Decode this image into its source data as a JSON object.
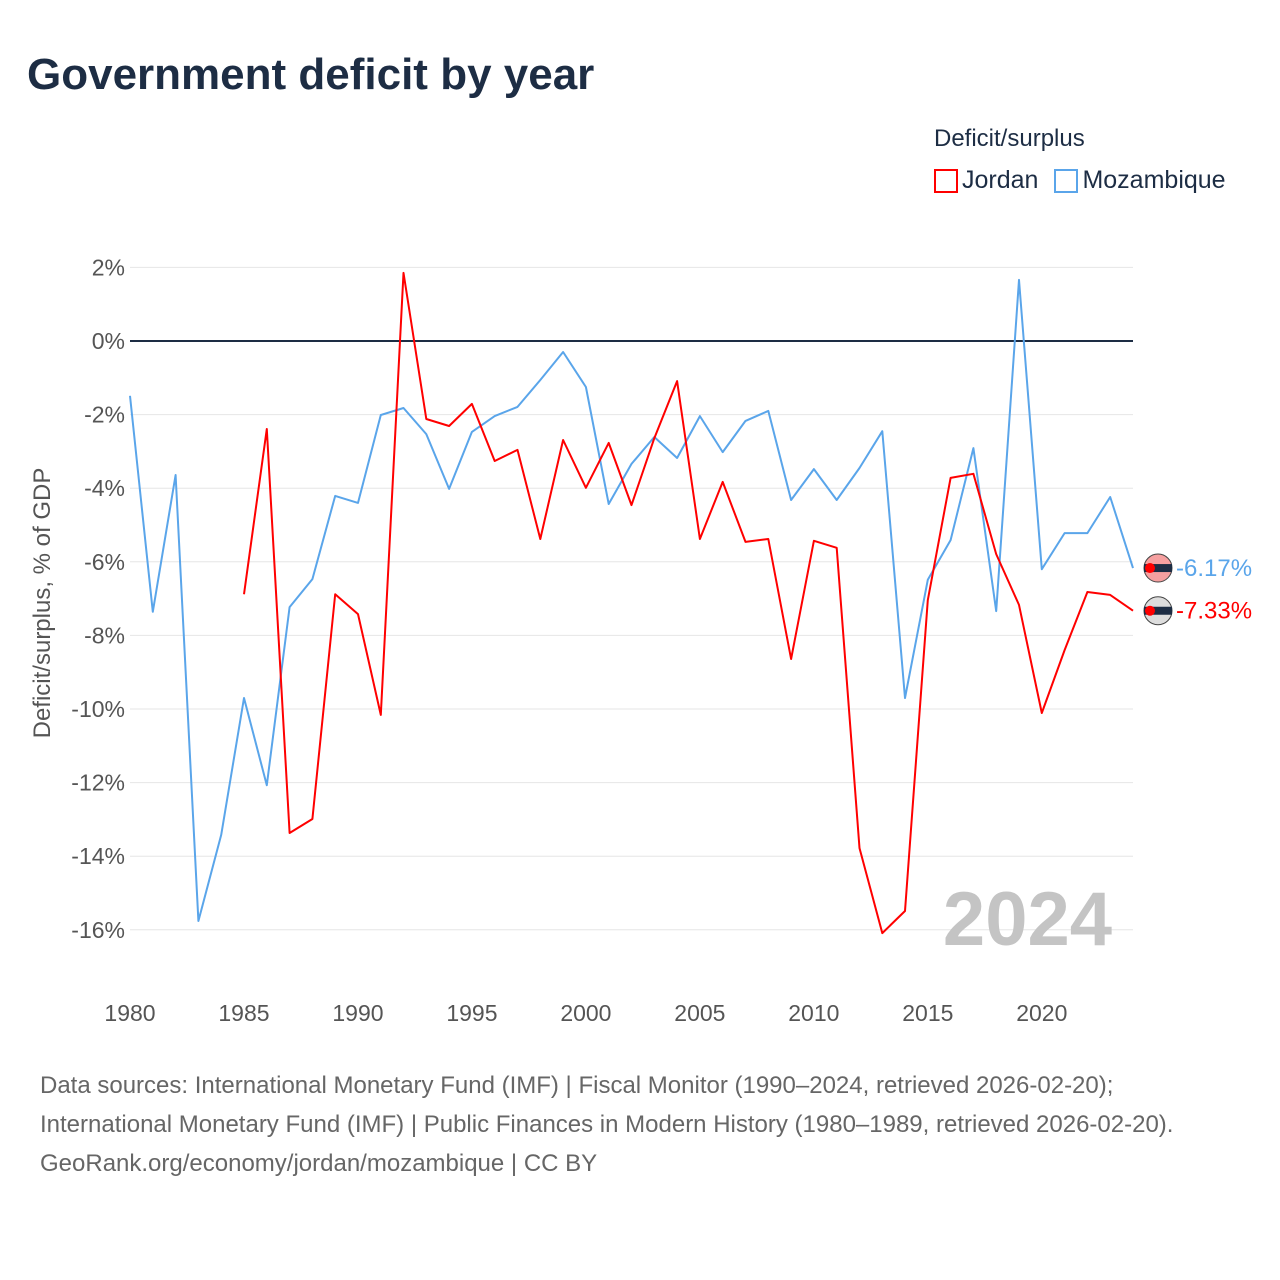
{
  "title": "Government deficit by year",
  "legend": {
    "title": "Deficit/surplus",
    "items": [
      {
        "label": "Jordan",
        "color": "#ff0000"
      },
      {
        "label": "Mozambique",
        "color": "#5aa5ea"
      }
    ]
  },
  "year_watermark": "2024",
  "end_labels": {
    "jordan": "-7.33%",
    "mozambique": "-6.17%"
  },
  "footer": {
    "sources": "Data sources: International Monetary Fund (IMF) | Fiscal Monitor (1990–2024, retrieved 2026-02-20); International Monetary Fund (IMF) | Public Finances in Modern History (1980–1989, retrieved 2026-02-20).",
    "credit": "GeoRank.org/economy/jordan/mozambique | CC BY"
  },
  "chart_data": {
    "type": "line",
    "title": "Government deficit by year",
    "xlabel": "",
    "ylabel": "Deficit/surplus, % of GDP",
    "xlim": [
      1980,
      2024
    ],
    "ylim": [
      -17,
      2.5
    ],
    "xticks": [
      1980,
      1985,
      1990,
      1995,
      2000,
      2005,
      2010,
      2015,
      2020
    ],
    "xtick_labels": [
      "1980",
      "1985",
      "1990",
      "1995",
      "2000",
      "2005",
      "2010",
      "2015",
      "2020"
    ],
    "yticks": [
      2,
      0,
      -2,
      -4,
      -6,
      -8,
      -10,
      -12,
      -14,
      -16
    ],
    "ytick_labels": [
      "2%",
      "0%",
      "-2%",
      "-4%",
      "-6%",
      "-8%",
      "-10%",
      "-12%",
      "-14%",
      "-16%"
    ],
    "grid": true,
    "legend_position": "top-right",
    "series": [
      {
        "name": "Jordan",
        "color": "#ff0000",
        "start_year": 1985,
        "values": [
          -6.88,
          -2.39,
          -13.37,
          -12.99,
          -6.88,
          -7.42,
          -10.16,
          1.85,
          -2.12,
          -2.31,
          -1.71,
          -3.26,
          -2.96,
          -5.38,
          -2.69,
          -3.99,
          -2.77,
          -4.46,
          -2.64,
          -1.09,
          -5.38,
          -3.83,
          -5.46,
          -5.38,
          -8.64,
          -5.43,
          -5.62,
          -13.78,
          -16.09,
          -15.49,
          -7.04,
          -3.72,
          -3.61,
          -5.79,
          -7.17,
          -10.11,
          -8.4,
          -6.82,
          -6.9,
          -7.33
        ]
      },
      {
        "name": "Mozambique",
        "color": "#5aa5ea",
        "start_year": 1980,
        "values": [
          -1.49,
          -7.36,
          -3.64,
          -15.76,
          -13.42,
          -9.7,
          -12.07,
          -7.23,
          -6.47,
          -4.21,
          -4.4,
          -2.01,
          -1.82,
          -2.53,
          -4.02,
          -2.47,
          -2.04,
          -1.79,
          -1.06,
          -0.3,
          -1.25,
          -4.43,
          -3.34,
          -2.61,
          -3.18,
          -2.04,
          -3.02,
          -2.17,
          -1.9,
          -4.32,
          -3.48,
          -4.32,
          -3.45,
          -2.45,
          -9.7,
          -6.49,
          -5.41,
          -2.91,
          -7.34,
          1.66,
          -6.2,
          -5.22,
          -5.22,
          -4.24,
          -6.17
        ]
      }
    ]
  }
}
